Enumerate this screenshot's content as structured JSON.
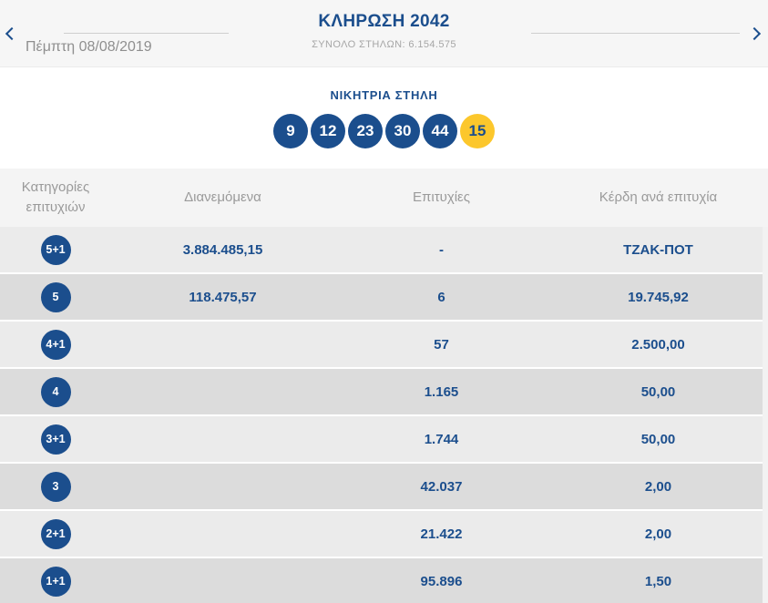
{
  "colors": {
    "accent_blue": "#1b4e8d",
    "joker_yellow": "#fcc72c",
    "row_light": "#ebebeb",
    "row_dark": "#dcdcdc",
    "header_band": "#f4f4f4",
    "top_bar": "#f6f6f6",
    "muted_text": "#9a9a9a"
  },
  "header": {
    "prev_icon": "chevron-left",
    "next_icon": "chevron-right",
    "date": "Πέμπτη 08/08/2019",
    "title": "ΚΛΗΡΩΣΗ 2042",
    "total_columns": "ΣΥΝΟΛΟ ΣΤΗΛΩΝ: 6.154.575"
  },
  "winning_column": {
    "title": "ΝΙΚΗΤΡΙΑ ΣΤΗΛΗ",
    "numbers": [
      "9",
      "12",
      "23",
      "30",
      "44"
    ],
    "joker": "15"
  },
  "table": {
    "headers": [
      "Κατηγορίες επιτυχιών",
      "Διανεμόμενα",
      "Επιτυχίες",
      "Κέρδη ανά επιτυχία"
    ],
    "rows": [
      {
        "category": "5+1",
        "distributed": "3.884.485,15",
        "wins": "-",
        "prize": "ΤΖΑΚ-ΠΟΤ"
      },
      {
        "category": "5",
        "distributed": "118.475,57",
        "wins": "6",
        "prize": "19.745,92"
      },
      {
        "category": "4+1",
        "distributed": "",
        "wins": "57",
        "prize": "2.500,00"
      },
      {
        "category": "4",
        "distributed": "",
        "wins": "1.165",
        "prize": "50,00"
      },
      {
        "category": "3+1",
        "distributed": "",
        "wins": "1.744",
        "prize": "50,00"
      },
      {
        "category": "3",
        "distributed": "",
        "wins": "42.037",
        "prize": "2,00"
      },
      {
        "category": "2+1",
        "distributed": "",
        "wins": "21.422",
        "prize": "2,00"
      },
      {
        "category": "1+1",
        "distributed": "",
        "wins": "95.896",
        "prize": "1,50"
      }
    ]
  }
}
